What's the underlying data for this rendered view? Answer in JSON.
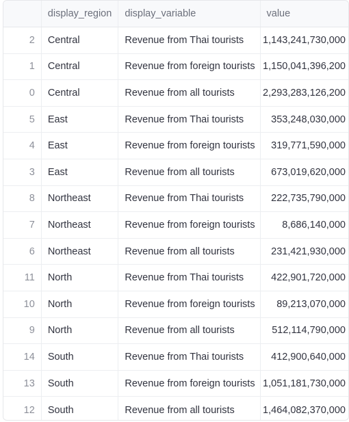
{
  "table": {
    "columns": [
      "",
      "display_region",
      "display_variable",
      "value"
    ],
    "rows": [
      {
        "index": "2",
        "display_region": "Central",
        "display_variable": "Revenue from Thai tourists",
        "value": "1,143,241,730,000"
      },
      {
        "index": "1",
        "display_region": "Central",
        "display_variable": "Revenue from foreign tourists",
        "value": "1,150,041,396,200"
      },
      {
        "index": "0",
        "display_region": "Central",
        "display_variable": "Revenue from all tourists",
        "value": "2,293,283,126,200"
      },
      {
        "index": "5",
        "display_region": "East",
        "display_variable": "Revenue from Thai tourists",
        "value": "353,248,030,000"
      },
      {
        "index": "4",
        "display_region": "East",
        "display_variable": "Revenue from foreign tourists",
        "value": "319,771,590,000"
      },
      {
        "index": "3",
        "display_region": "East",
        "display_variable": "Revenue from all tourists",
        "value": "673,019,620,000"
      },
      {
        "index": "8",
        "display_region": "Northeast",
        "display_variable": "Revenue from Thai tourists",
        "value": "222,735,790,000"
      },
      {
        "index": "7",
        "display_region": "Northeast",
        "display_variable": "Revenue from foreign tourists",
        "value": "8,686,140,000"
      },
      {
        "index": "6",
        "display_region": "Northeast",
        "display_variable": "Revenue from all tourists",
        "value": "231,421,930,000"
      },
      {
        "index": "11",
        "display_region": "North",
        "display_variable": "Revenue from Thai tourists",
        "value": "422,901,720,000"
      },
      {
        "index": "10",
        "display_region": "North",
        "display_variable": "Revenue from foreign tourists",
        "value": "89,213,070,000"
      },
      {
        "index": "9",
        "display_region": "North",
        "display_variable": "Revenue from all tourists",
        "value": "512,114,790,000"
      },
      {
        "index": "14",
        "display_region": "South",
        "display_variable": "Revenue from Thai tourists",
        "value": "412,900,640,000"
      },
      {
        "index": "13",
        "display_region": "South",
        "display_variable": "Revenue from foreign tourists",
        "value": "1,051,181,730,000"
      },
      {
        "index": "12",
        "display_region": "South",
        "display_variable": "Revenue from all tourists",
        "value": "1,464,082,370,000"
      }
    ]
  }
}
